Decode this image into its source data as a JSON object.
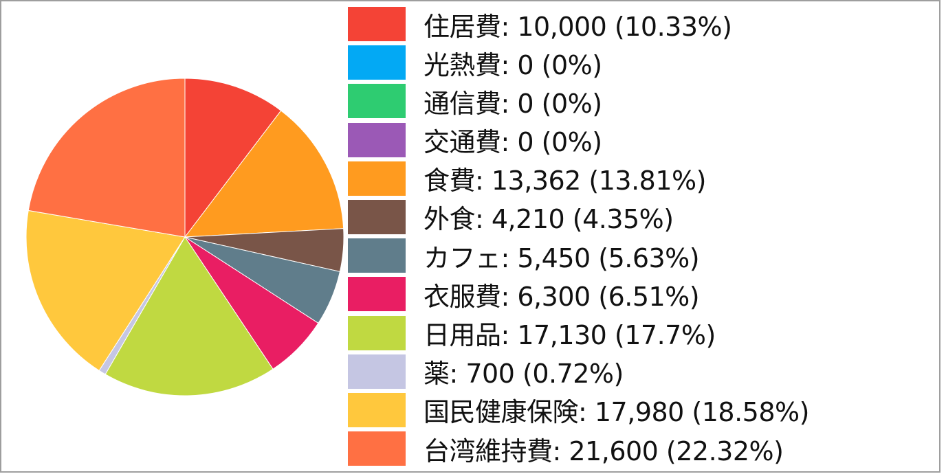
{
  "chart_data": {
    "type": "pie",
    "title": "",
    "legend_position": "right",
    "categories": [
      "住居費",
      "光熱費",
      "通信費",
      "交通費",
      "食費",
      "外食",
      "カフェ",
      "衣服費",
      "日用品",
      "薬",
      "国民健康保険",
      "台湾維持費"
    ],
    "values": [
      10000,
      0,
      0,
      0,
      13362,
      4210,
      5450,
      6300,
      17130,
      700,
      17980,
      21600
    ],
    "value_labels": [
      "10,000",
      "0",
      "0",
      "0",
      "13,362",
      "4,210",
      "5,450",
      "6,300",
      "17,130",
      "700",
      "17,980",
      "21,600"
    ],
    "percent_labels": [
      "10.33%",
      "0%",
      "0%",
      "0%",
      "13.81%",
      "4.35%",
      "5.63%",
      "6.51%",
      "17.7%",
      "0.72%",
      "18.58%",
      "22.32%"
    ],
    "colors": [
      "#f44336",
      "#03a9f4",
      "#2ecc71",
      "#9b59b6",
      "#ff9b1f",
      "#795548",
      "#607d8b",
      "#e91e63",
      "#c0d941",
      "#c5c6e3",
      "#ffc83d",
      "#ff7043"
    ],
    "legend_labels": [
      "住居費: 10,000 (10.33%)",
      "光熱費: 0 (0%)",
      "通信費: 0 (0%)",
      "交通費: 0 (0%)",
      "食費: 13,362 (13.81%)",
      "外食: 4,210 (4.35%)",
      "カフェ: 5,450 (5.63%)",
      "衣服費: 6,300 (6.51%)",
      "日用品: 17,130 (17.7%)",
      "薬: 700 (0.72%)",
      "国民健康保険: 17,980 (18.58%)",
      "台湾維持費: 21,600 (22.32%)"
    ]
  }
}
